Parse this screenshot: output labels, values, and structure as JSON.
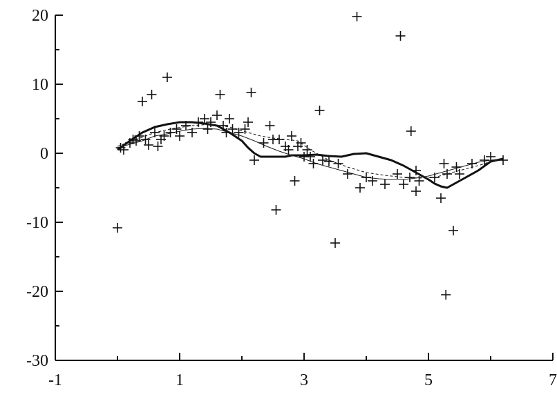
{
  "chart_data": {
    "type": "scatter",
    "title": "",
    "xlabel": "",
    "ylabel": "",
    "xlim": [
      -1,
      7
    ],
    "ylim": [
      -30,
      20
    ],
    "x_ticks": [
      -1,
      1,
      3,
      5,
      7
    ],
    "x_minor_ticks": [
      0,
      2,
      4,
      6
    ],
    "y_ticks": [
      -30,
      -20,
      -10,
      0,
      10,
      20
    ],
    "y_minor_ticks": [
      -25,
      -15,
      -5,
      5,
      15
    ],
    "x_tick_labels": [
      "-1",
      "1",
      "3",
      "5",
      "7"
    ],
    "y_tick_labels": [
      "-30",
      "-20",
      "-10",
      "0",
      "10",
      "20"
    ],
    "grid": false,
    "series": [
      {
        "style": "markers",
        "marker": "plus",
        "x": [
          0.0,
          0.05,
          0.1,
          0.2,
          0.25,
          0.3,
          0.35,
          0.4,
          0.45,
          0.5,
          0.55,
          0.6,
          0.65,
          0.7,
          0.75,
          0.8,
          0.85,
          0.95,
          1.0,
          1.1,
          1.2,
          1.3,
          1.4,
          1.45,
          1.5,
          1.6,
          1.65,
          1.7,
          1.75,
          1.8,
          1.85,
          1.95,
          2.05,
          2.1,
          2.15,
          2.2,
          2.35,
          2.45,
          2.5,
          2.55,
          2.6,
          2.7,
          2.75,
          2.8,
          2.85,
          2.9,
          2.95,
          3.0,
          3.05,
          3.1,
          3.15,
          3.25,
          3.3,
          3.4,
          3.5,
          3.55,
          3.7,
          3.85,
          3.9,
          4.0,
          4.1,
          4.3,
          4.5,
          4.55,
          4.6,
          4.7,
          4.72,
          4.8,
          4.8,
          4.85,
          5.1,
          5.2,
          5.25,
          5.28,
          5.3,
          5.4,
          5.45,
          5.5,
          5.7,
          5.9,
          6.0,
          6.2
        ],
        "y": [
          -10.8,
          0.8,
          0.5,
          1.5,
          2.0,
          1.8,
          2.5,
          7.5,
          2.0,
          1.2,
          8.5,
          3.0,
          1.0,
          2.0,
          2.5,
          11.0,
          3.0,
          3.5,
          2.5,
          4.0,
          3.0,
          4.5,
          5.0,
          3.5,
          4.5,
          5.5,
          8.5,
          4.0,
          3.0,
          5.0,
          3.5,
          3.0,
          3.5,
          4.5,
          8.8,
          -1.0,
          1.5,
          4.0,
          2.0,
          -8.2,
          2.0,
          1.0,
          0.5,
          2.5,
          -4.0,
          1.0,
          1.5,
          -0.5,
          0.5,
          -0.5,
          -1.5,
          6.2,
          -1.0,
          -1.2,
          -13.0,
          -1.5,
          -3.0,
          19.8,
          -5.0,
          -3.5,
          -4.0,
          -4.5,
          -3.0,
          17.0,
          -4.5,
          -3.5,
          3.2,
          -2.5,
          -5.5,
          -4.0,
          -3.5,
          -6.5,
          -1.5,
          -20.5,
          -3.0,
          -11.2,
          -2.0,
          -3.0,
          -1.5,
          -1.0,
          -0.5,
          -1.0
        ]
      },
      {
        "style": "thick-line",
        "x": [
          0.0,
          0.2,
          0.4,
          0.6,
          0.8,
          1.0,
          1.2,
          1.4,
          1.6,
          1.8,
          2.0,
          2.1,
          2.2,
          2.3,
          2.5,
          2.7,
          2.8,
          3.0,
          3.2,
          3.4,
          3.6,
          3.8,
          4.0,
          4.2,
          4.4,
          4.6,
          4.8,
          5.0,
          5.1,
          5.2,
          5.3,
          5.4,
          5.6,
          5.8,
          6.0,
          6.2
        ],
        "y": [
          0.5,
          1.8,
          3.0,
          3.8,
          4.2,
          4.5,
          4.5,
          4.3,
          4.0,
          3.0,
          1.8,
          0.8,
          0.0,
          -0.5,
          -0.5,
          -0.5,
          -0.3,
          -0.3,
          -0.2,
          -0.4,
          -0.5,
          -0.1,
          0.0,
          -0.5,
          -1.0,
          -1.8,
          -2.8,
          -3.8,
          -4.4,
          -4.8,
          -5.0,
          -4.5,
          -3.5,
          -2.5,
          -1.2,
          -0.8
        ]
      },
      {
        "style": "thin-line",
        "x": [
          0.0,
          0.2,
          0.4,
          0.6,
          0.8,
          1.0,
          1.2,
          1.4,
          1.6,
          1.8,
          2.0,
          2.2,
          2.4,
          2.6,
          2.8,
          3.0,
          3.2,
          3.4,
          3.6,
          3.8,
          4.0,
          4.2,
          4.4,
          4.6,
          4.8,
          5.0,
          5.2,
          5.4,
          5.6,
          5.8,
          6.0,
          6.2
        ],
        "y": [
          0.8,
          1.3,
          1.8,
          2.5,
          2.8,
          3.2,
          3.5,
          3.6,
          3.5,
          3.0,
          2.5,
          1.8,
          1.0,
          0.3,
          -0.3,
          -0.8,
          -1.5,
          -2.0,
          -2.5,
          -3.0,
          -3.5,
          -3.7,
          -3.8,
          -3.8,
          -3.6,
          -3.3,
          -2.8,
          -2.3,
          -1.8,
          -1.3,
          -1.0,
          -0.8
        ]
      },
      {
        "style": "dashed-line",
        "x": [
          0.0,
          0.3,
          0.6,
          0.9,
          1.2,
          1.5,
          1.8,
          2.1,
          2.3,
          2.5,
          2.7,
          2.9,
          3.1,
          3.4,
          3.7,
          4.0,
          4.3,
          4.6,
          4.9,
          5.1,
          5.3,
          5.5,
          5.8,
          6.0,
          6.2
        ],
        "y": [
          1.0,
          2.0,
          3.0,
          3.6,
          4.0,
          4.2,
          3.8,
          3.0,
          2.5,
          2.2,
          2.0,
          1.8,
          0.5,
          -1.0,
          -2.0,
          -2.8,
          -3.2,
          -3.5,
          -3.6,
          -3.5,
          -3.0,
          -2.5,
          -1.8,
          -1.2,
          -0.8
        ]
      }
    ]
  }
}
